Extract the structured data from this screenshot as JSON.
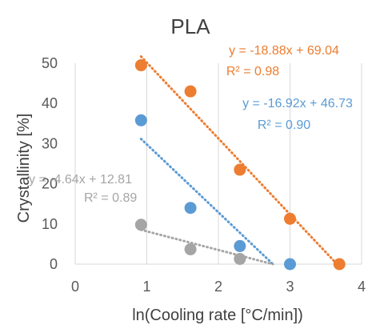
{
  "chart_data": {
    "type": "scatter",
    "title": "PLA",
    "xlabel": "ln(Cooling rate [°C/min])",
    "ylabel": "Crystallinity [%]",
    "xlim": [
      0,
      4
    ],
    "ylim": [
      0,
      50
    ],
    "x_ticks": [
      "0",
      "1",
      "2",
      "3",
      "4"
    ],
    "y_ticks": [
      "0",
      "10",
      "20",
      "30",
      "40",
      "50"
    ],
    "grid": "vertical",
    "legend": "none",
    "series": [
      {
        "color": "#ED7D31",
        "points": [
          [
            0.92,
            49.5
          ],
          [
            1.61,
            43.0
          ],
          [
            2.3,
            23.5
          ],
          [
            3.0,
            11.3
          ],
          [
            3.69,
            0.0
          ]
        ],
        "trend": {
          "slope": -18.88,
          "intercept": 69.04,
          "x_range": [
            0.92,
            3.69
          ]
        },
        "equation": "y = -18.88x + 69.04",
        "r2": "R² = 0.98"
      },
      {
        "color": "#5B9BD5",
        "points": [
          [
            0.92,
            35.8
          ],
          [
            1.61,
            14.0
          ],
          [
            2.3,
            4.5
          ],
          [
            3.0,
            0.0
          ]
        ],
        "trend": {
          "slope": -16.92,
          "intercept": 46.73,
          "x_range": [
            0.92,
            2.76
          ]
        },
        "equation": "y = -16.92x + 46.73",
        "r2": "R² = 0.90"
      },
      {
        "color": "#A5A5A5",
        "points": [
          [
            0.92,
            9.8
          ],
          [
            1.61,
            3.7
          ],
          [
            2.3,
            1.3
          ]
        ],
        "trend": {
          "slope": -4.64,
          "intercept": 12.81,
          "x_range": [
            0.92,
            2.76
          ]
        },
        "equation": "y = -4.64x + 12.81",
        "r2": "R² = 0.89"
      }
    ]
  }
}
